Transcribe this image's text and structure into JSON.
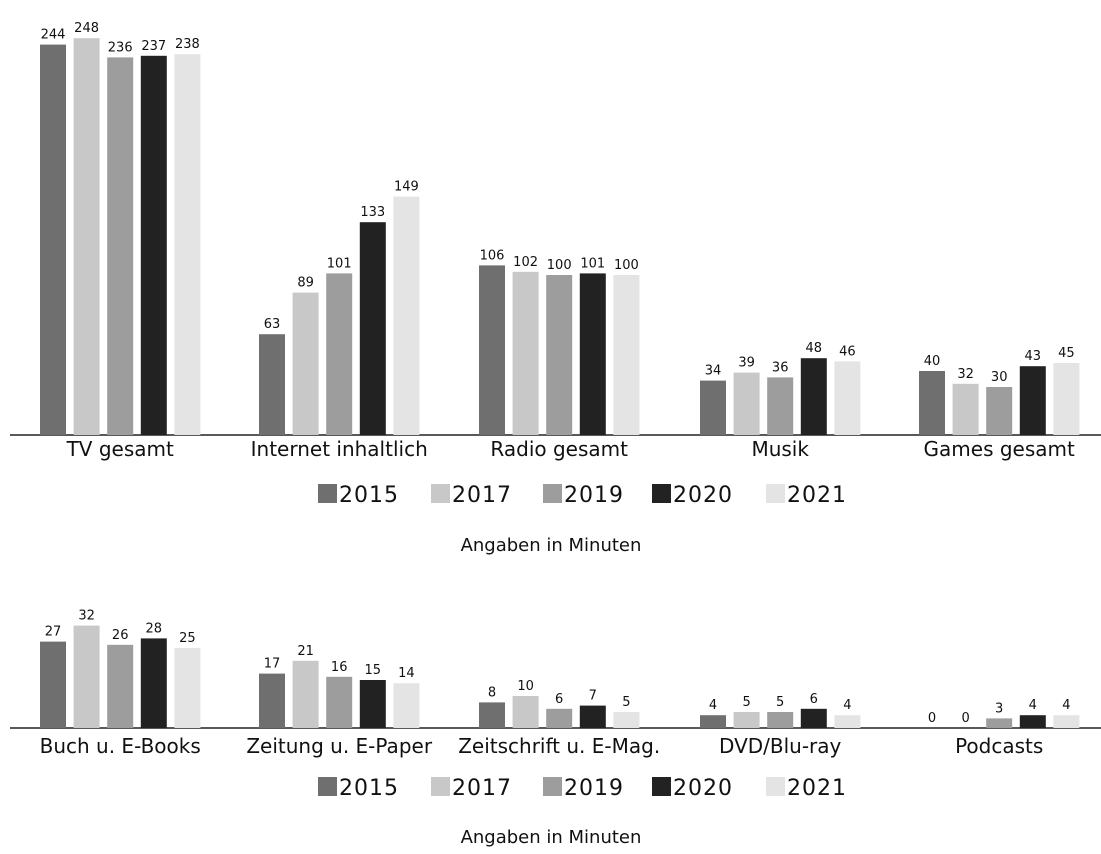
{
  "chart_data": [
    {
      "type": "bar",
      "categories": [
        "TV gesamt",
        "Internet inhaltlich",
        "Radio gesamt",
        "Musik",
        "Games gesamt"
      ],
      "series": [
        {
          "name": "2015",
          "color": "#6f6f6f",
          "values": [
            244,
            63,
            106,
            34,
            40
          ]
        },
        {
          "name": "2017",
          "color": "#c8c8c8",
          "values": [
            248,
            89,
            102,
            39,
            32
          ]
        },
        {
          "name": "2019",
          "color": "#9d9d9d",
          "values": [
            236,
            101,
            100,
            36,
            30
          ]
        },
        {
          "name": "2020",
          "color": "#222222",
          "values": [
            237,
            133,
            101,
            48,
            43
          ]
        },
        {
          "name": "2021",
          "color": "#e4e4e4",
          "values": [
            238,
            149,
            100,
            46,
            45
          ]
        }
      ],
      "legend_position": "bottom",
      "note": "Angaben in Minuten",
      "ylim": [
        0,
        248
      ]
    },
    {
      "type": "bar",
      "categories": [
        "Buch u. E-Books",
        "Zeitung u. E-Paper",
        "Zeitschrift u. E-Mag.",
        "DVD/Blu-ray",
        "Podcasts"
      ],
      "series": [
        {
          "name": "2015",
          "color": "#6f6f6f",
          "values": [
            27,
            17,
            8,
            4,
            0
          ]
        },
        {
          "name": "2017",
          "color": "#c8c8c8",
          "values": [
            32,
            21,
            10,
            5,
            0
          ]
        },
        {
          "name": "2019",
          "color": "#9d9d9d",
          "values": [
            26,
            16,
            6,
            5,
            3
          ]
        },
        {
          "name": "2020",
          "color": "#222222",
          "values": [
            28,
            15,
            7,
            6,
            4
          ]
        },
        {
          "name": "2021",
          "color": "#e4e4e4",
          "values": [
            25,
            14,
            5,
            4,
            4
          ]
        }
      ],
      "legend_position": "bottom",
      "note": "Angaben in Minuten",
      "ylim": [
        0,
        248
      ]
    }
  ]
}
